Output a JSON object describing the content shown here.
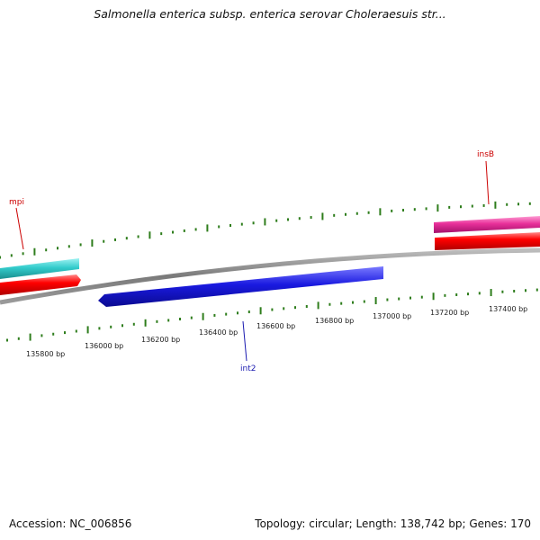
{
  "title": "Salmonella enterica subsp. enterica serovar Choleraesuis str...",
  "footer": {
    "accession": "Accession: NC_006856",
    "summary": "Topology: circular; Length: 138,742 bp; Genes: 170"
  },
  "colors": {
    "backbone": "#8a8a8a",
    "tick": "#2e7d1c",
    "forward_gene_label": "#cc0000",
    "reverse_gene_label": "#1a1ab0"
  },
  "ruler": {
    "labels": [
      "135800 bp",
      "136000 bp",
      "136200 bp",
      "136400 bp",
      "136600 bp",
      "136800 bp",
      "137000 bp",
      "137200 bp",
      "137400 bp"
    ]
  },
  "genes": [
    {
      "name": "mpi",
      "color": "#33cccc",
      "strand": "+"
    },
    {
      "name": "insB",
      "color": "#e8309a",
      "strand": "+"
    },
    {
      "name": "int2",
      "color": "#1a1ae0",
      "strand": "-"
    }
  ],
  "orf_tracks": [
    {
      "color": "#ff0000"
    },
    {
      "color": "#ff0000"
    }
  ]
}
